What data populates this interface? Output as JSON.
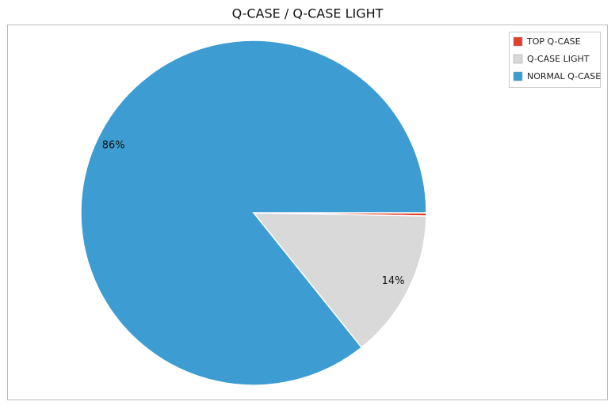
{
  "chart_data": {
    "type": "pie",
    "title": "Q-CASE / Q-CASE LIGHT",
    "categories": [
      "TOP Q-CASE",
      "Q-CASE LIGHT",
      "NORMAL Q-CASE"
    ],
    "values": [
      0.3,
      14,
      86
    ],
    "value_labels": [
      null,
      "14%",
      "86%"
    ],
    "colors": [
      "#e0412f",
      "#d9d9d9",
      "#3d9dd3"
    ],
    "legend": "top-right"
  }
}
